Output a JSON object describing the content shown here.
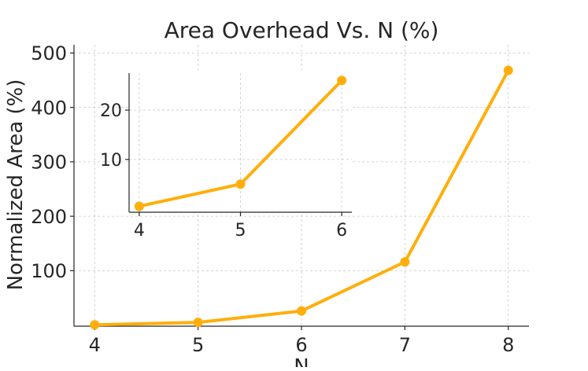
{
  "chart_data": [
    {
      "type": "line",
      "title": "Area Overhead Vs. N (%)",
      "xlabel": "N",
      "ylabel": "Normalized Area (%)",
      "x": [
        4,
        5,
        6,
        7,
        8
      ],
      "series": [
        {
          "values": [
            0.5,
            5,
            26,
            116,
            468
          ],
          "color": "#FFAE0B"
        }
      ],
      "xticks": [
        4,
        5,
        6,
        7,
        8
      ],
      "yticks": [
        100,
        200,
        300,
        400,
        500
      ],
      "xlim": [
        3.8,
        8.2
      ],
      "ylim": [
        -2,
        515
      ],
      "grid": true
    },
    {
      "type": "line",
      "title": "",
      "xlabel": "",
      "ylabel": "",
      "x": [
        4,
        5,
        6
      ],
      "series": [
        {
          "values": [
            0.5,
            5,
            26
          ],
          "color": "#FFAE0B"
        }
      ],
      "xticks": [
        4,
        5,
        6
      ],
      "yticks": [
        10,
        20
      ],
      "xlim": [
        3.9,
        6.1
      ],
      "ylim": [
        -0.7,
        27.5
      ],
      "grid": true,
      "placement": "inset, upper-left"
    }
  ]
}
